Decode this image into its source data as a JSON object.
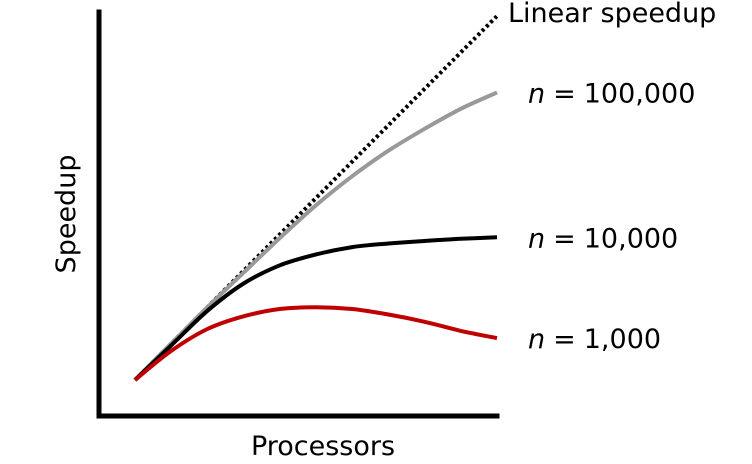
{
  "chart_data": {
    "type": "line",
    "title": "",
    "xlabel": "Processors",
    "ylabel": "Speedup",
    "xlim": [
      0,
      10
    ],
    "ylim": [
      0,
      10
    ],
    "grid": false,
    "legend": "direct labels at right end of lines",
    "series": [
      {
        "name": "Linear speedup",
        "color": "#000000",
        "style": "dotted",
        "x": [
          0,
          10
        ],
        "y": [
          0,
          10
        ]
      },
      {
        "name": "100,000",
        "prefix": "n",
        "eq": "=",
        "color": "#999999",
        "style": "solid",
        "x": [
          0,
          1,
          2,
          3,
          4,
          5,
          6,
          7,
          8,
          9,
          10
        ],
        "y": [
          0,
          1.0,
          2.0,
          2.95,
          3.9,
          4.8,
          5.6,
          6.3,
          6.9,
          7.45,
          7.9
        ]
      },
      {
        "name": "10,000",
        "prefix": "n",
        "eq": "=",
        "color": "#000000",
        "style": "solid",
        "x": [
          0,
          1,
          2,
          3,
          4,
          5,
          6,
          7,
          8,
          9,
          10
        ],
        "y": [
          0,
          0.95,
          1.9,
          2.65,
          3.15,
          3.45,
          3.65,
          3.75,
          3.82,
          3.88,
          3.92
        ]
      },
      {
        "name": "1,000",
        "prefix": "n",
        "eq": "=",
        "color": "#c00000",
        "style": "solid",
        "x": [
          0,
          1,
          2,
          3,
          4,
          5,
          6,
          7,
          8,
          9,
          10
        ],
        "y": [
          0,
          0.8,
          1.4,
          1.75,
          1.95,
          2.0,
          1.95,
          1.8,
          1.6,
          1.35,
          1.15
        ]
      }
    ]
  }
}
